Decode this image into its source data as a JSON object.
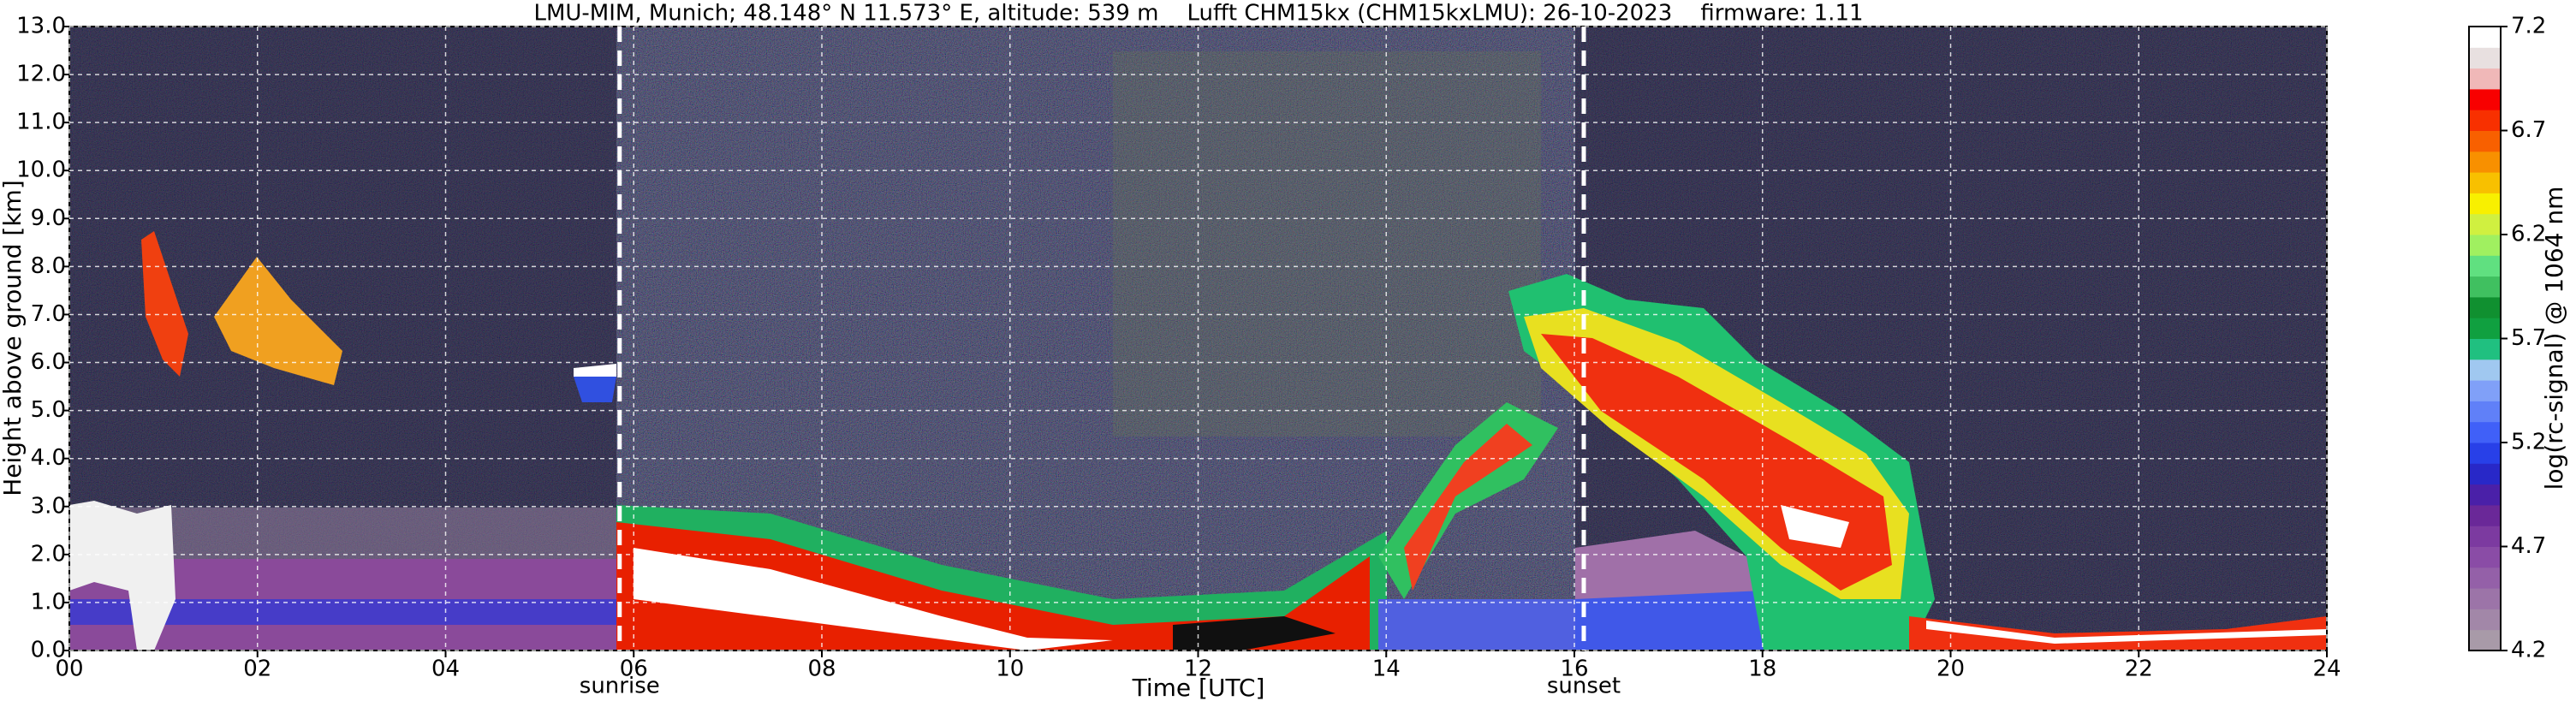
{
  "chart_data": {
    "type": "heatmap",
    "title": "LMU-MIM, Munich; 48.148° N 11.573° E, altitude: 539 m    Lufft CHM15kx (CHM15kxLMU): 26-10-2023    firmware: 1.11",
    "xlabel": "Time [UTC]",
    "ylabel": "Height above ground [km]",
    "colorbar_label": "log(rc-signal) @ 1064 nm",
    "xlim": [
      0,
      24
    ],
    "ylim": [
      0,
      13
    ],
    "xticks": [
      {
        "value": 0,
        "label": "00"
      },
      {
        "value": 2,
        "label": "02"
      },
      {
        "value": 4,
        "label": "04"
      },
      {
        "value": 6,
        "label": "06"
      },
      {
        "value": 8,
        "label": "08"
      },
      {
        "value": 10,
        "label": "10"
      },
      {
        "value": 12,
        "label": "12"
      },
      {
        "value": 14,
        "label": "14"
      },
      {
        "value": 16,
        "label": "16"
      },
      {
        "value": 18,
        "label": "18"
      },
      {
        "value": 20,
        "label": "20"
      },
      {
        "value": 22,
        "label": "22"
      },
      {
        "value": 24,
        "label": "24"
      }
    ],
    "yticks": [
      {
        "value": 0,
        "label": "0.0"
      },
      {
        "value": 1,
        "label": "1.0"
      },
      {
        "value": 2,
        "label": "2.0"
      },
      {
        "value": 3,
        "label": "3.0"
      },
      {
        "value": 4,
        "label": "4.0"
      },
      {
        "value": 5,
        "label": "5.0"
      },
      {
        "value": 6,
        "label": "6.0"
      },
      {
        "value": 7,
        "label": "7.0"
      },
      {
        "value": 8,
        "label": "8.0"
      },
      {
        "value": 9,
        "label": "9.0"
      },
      {
        "value": 10,
        "label": "10.0"
      },
      {
        "value": 11,
        "label": "11.0"
      },
      {
        "value": 12,
        "label": "12.0"
      },
      {
        "value": 13,
        "label": "13.0"
      }
    ],
    "zlim": [
      4.2,
      7.2
    ],
    "zticks": [
      4.2,
      4.7,
      5.2,
      5.7,
      6.2,
      6.7,
      7.2
    ],
    "colors": [
      "#a89aa8",
      "#a287a8",
      "#9c74a8",
      "#9460a8",
      "#8a4ca6",
      "#7c3aa0",
      "#6a2898",
      "#4a20a8",
      "#2828c8",
      "#2840e8",
      "#4060f8",
      "#6080f8",
      "#80a0f8",
      "#a0c8f0",
      "#20c080",
      "#10a040",
      "#109030",
      "#40c060",
      "#60e080",
      "#a0f060",
      "#d0f040",
      "#f8f000",
      "#f8c000",
      "#f89000",
      "#f86000",
      "#f83000",
      "#f80000",
      "#f0b8b8",
      "#e8e0e0",
      "#ffffff"
    ],
    "grid": true,
    "annotations": [
      {
        "text": "sunrise",
        "x": 5.85
      },
      {
        "text": "sunset",
        "x": 16.1
      }
    ]
  }
}
